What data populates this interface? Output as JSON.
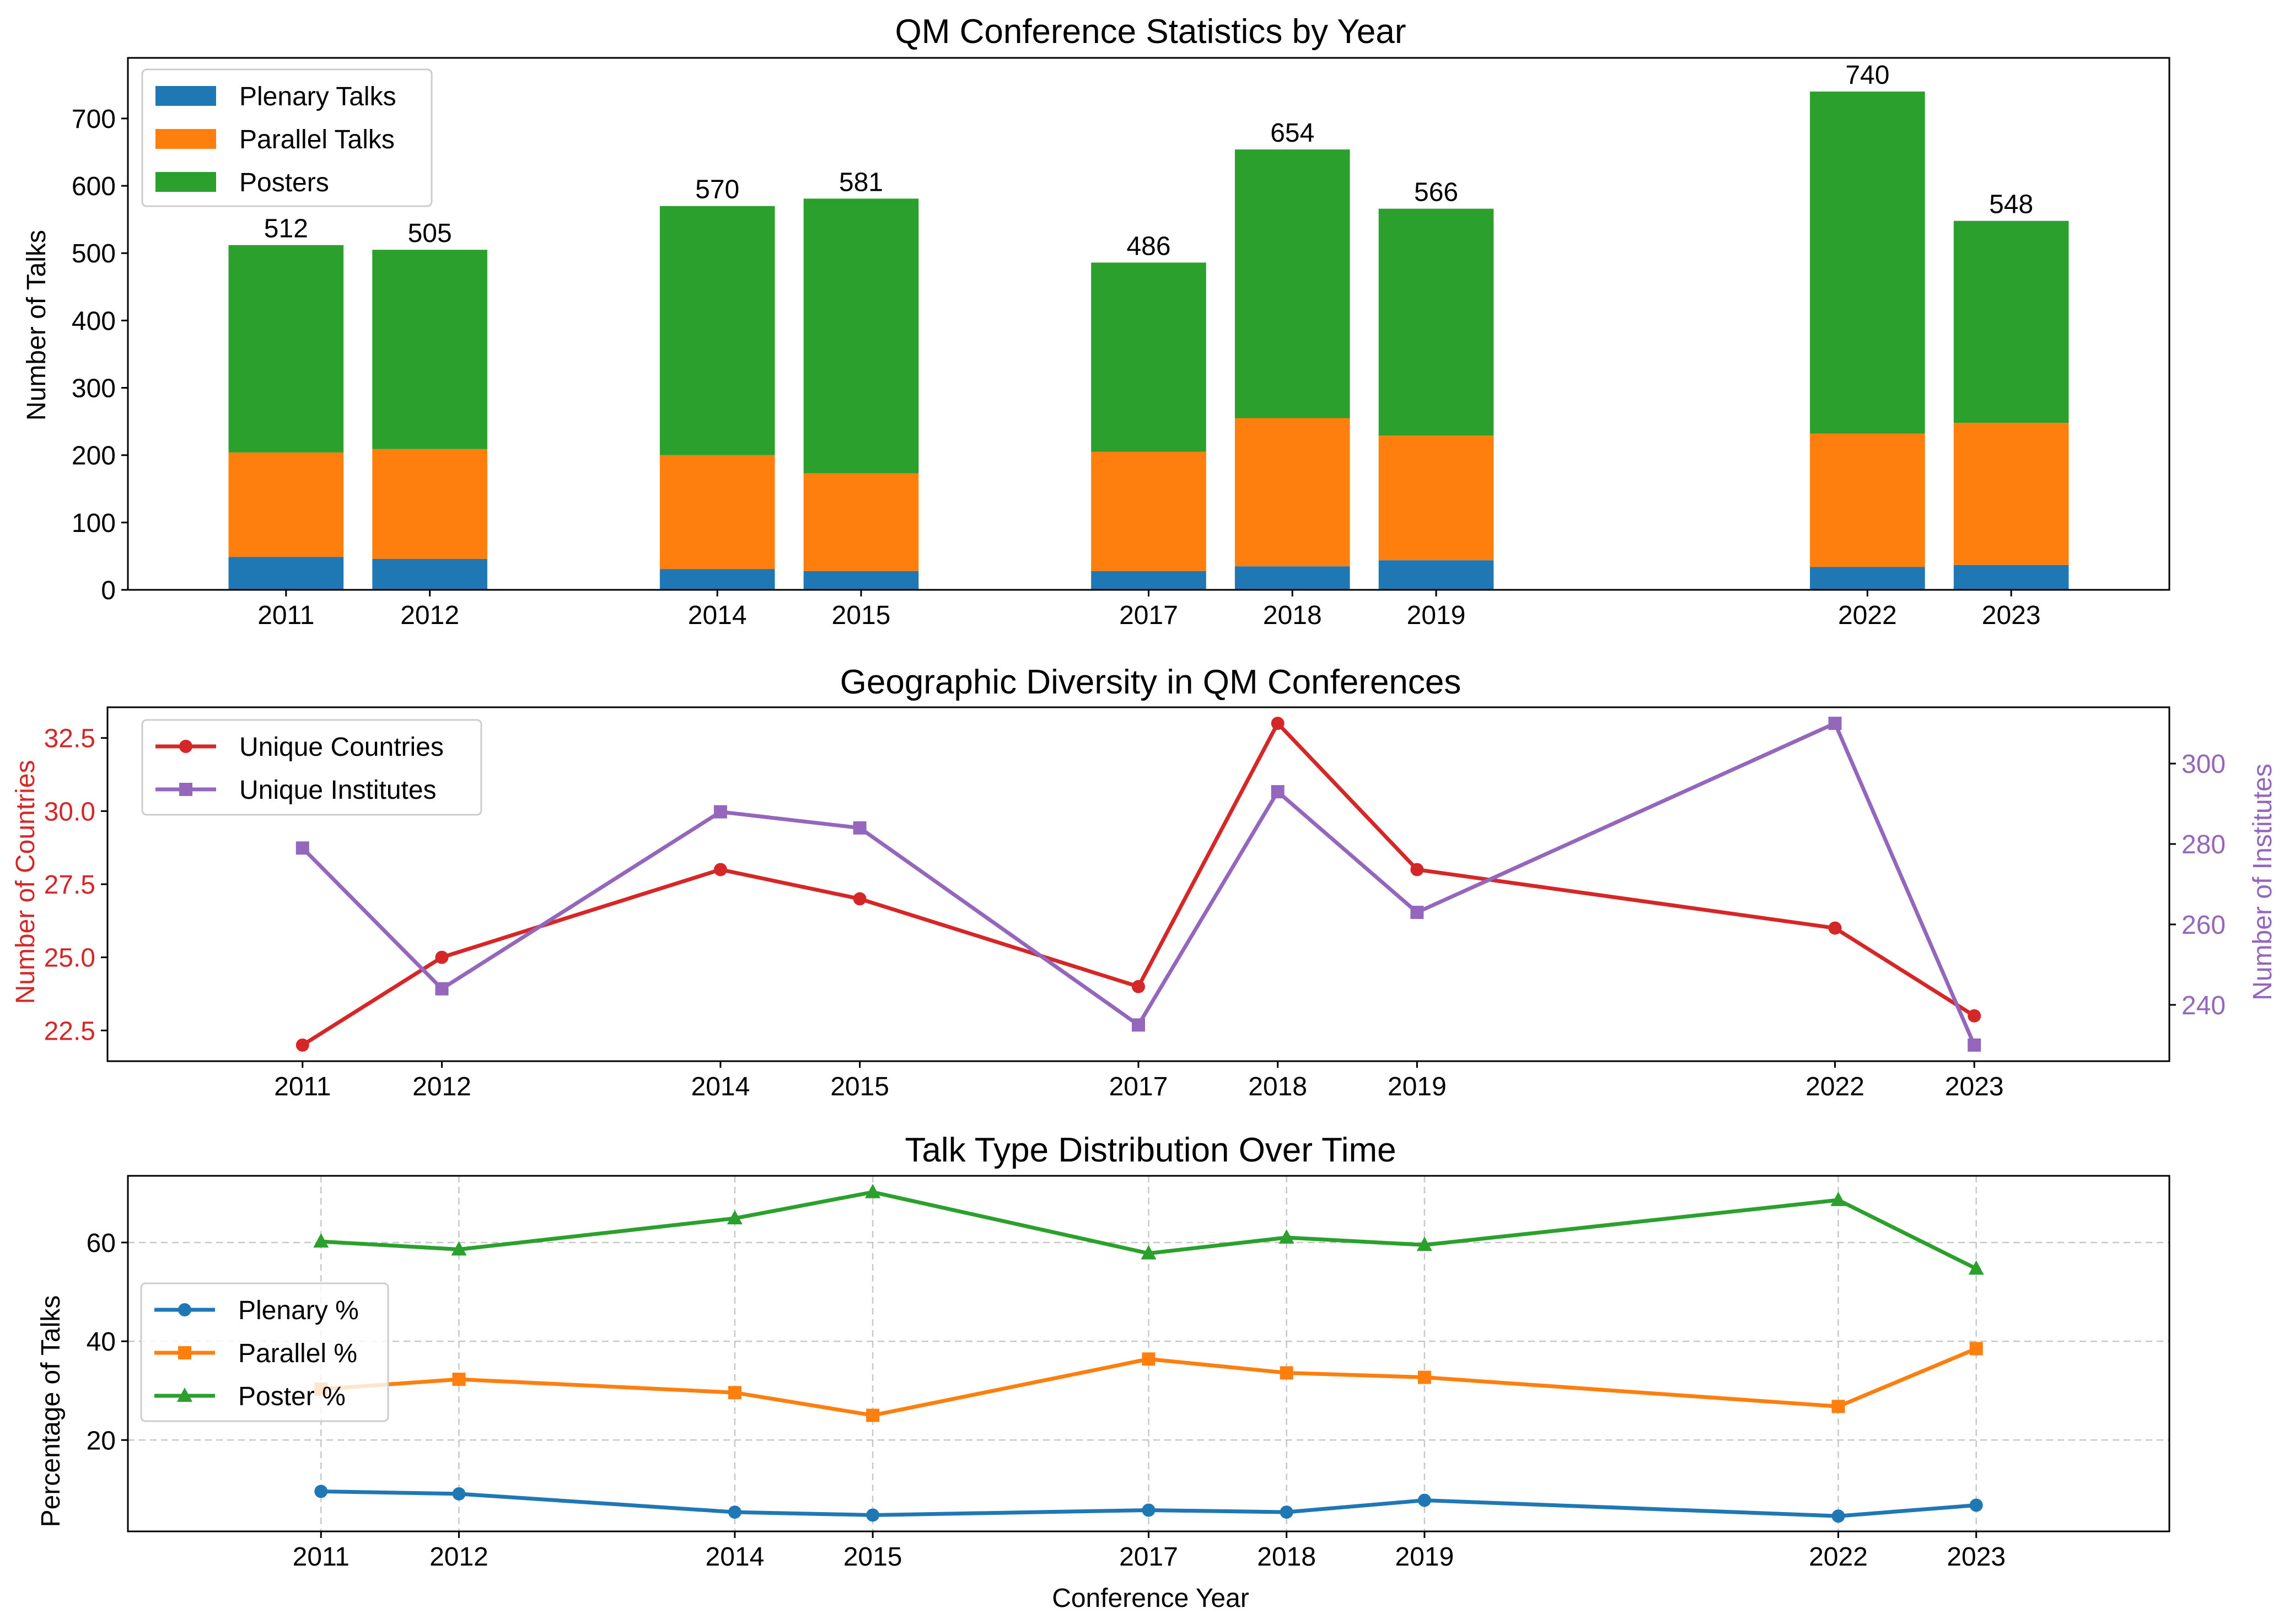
{
  "chart_data": [
    {
      "type": "bar",
      "stacked": true,
      "title": "QM Conference Statistics by Year",
      "xlabel": "",
      "ylabel": "Number of Talks",
      "categories": [
        "2011",
        "2012",
        "2014",
        "2015",
        "2017",
        "2018",
        "2019",
        "2022",
        "2023"
      ],
      "x": [
        2011,
        2012,
        2014,
        2015,
        2017,
        2018,
        2019,
        2022,
        2023
      ],
      "series": [
        {
          "name": "Plenary Talks",
          "color": "#1f77b4",
          "values": [
            49,
            46,
            31,
            28,
            28,
            35,
            44,
            34,
            37
          ]
        },
        {
          "name": "Parallel Talks",
          "color": "#ff7f0e",
          "values": [
            155,
            163,
            169,
            145,
            177,
            220,
            185,
            198,
            211
          ]
        },
        {
          "name": "Posters",
          "color": "#2ca02c",
          "values": [
            308,
            296,
            370,
            408,
            281,
            399,
            337,
            508,
            300
          ]
        }
      ],
      "totals": [
        512,
        505,
        570,
        581,
        486,
        654,
        566,
        740,
        548
      ],
      "ylim": [
        0,
        790
      ],
      "yticks": [
        0,
        100,
        200,
        300,
        400,
        500,
        600,
        700
      ],
      "grid": false,
      "legend": "top-left"
    },
    {
      "type": "line",
      "title": "Geographic Diversity in QM Conferences",
      "xlabel": "",
      "x": [
        2011,
        2012,
        2014,
        2015,
        2017,
        2018,
        2019,
        2022,
        2023
      ],
      "ylabel": "Number of Countries",
      "ylabel_right": "Number of Institutes",
      "series": [
        {
          "name": "Unique Countries",
          "axis": "left",
          "color": "#d62728",
          "marker": "circle",
          "values": [
            22,
            25,
            28,
            27,
            24,
            33,
            28,
            26,
            23
          ]
        },
        {
          "name": "Unique Institutes",
          "axis": "right",
          "color": "#9467bd",
          "marker": "square",
          "values": [
            279,
            244,
            288,
            284,
            235,
            293,
            263,
            310,
            230
          ]
        }
      ],
      "ylim": [
        21.45,
        33.55
      ],
      "yticks": [
        "22.5",
        "25.0",
        "27.5",
        "30.0",
        "32.5"
      ],
      "ylim_right": [
        226,
        314
      ],
      "yticks_right": [
        "240",
        "260",
        "280",
        "300"
      ],
      "grid": false,
      "legend": "top-left"
    },
    {
      "type": "line",
      "title": "Talk Type Distribution Over Time",
      "xlabel": "Conference Year",
      "ylabel": "Percentage of Talks",
      "x": [
        2011,
        2012,
        2014,
        2015,
        2017,
        2018,
        2019,
        2022,
        2023
      ],
      "series": [
        {
          "name": "Plenary %",
          "color": "#1f77b4",
          "marker": "circle",
          "values": [
            9.6,
            9.1,
            5.4,
            4.8,
            5.8,
            5.4,
            7.8,
            4.6,
            6.8
          ]
        },
        {
          "name": "Parallel %",
          "color": "#ff7f0e",
          "marker": "square",
          "values": [
            30.3,
            32.3,
            29.6,
            25.0,
            36.4,
            33.6,
            32.7,
            26.8,
            38.5
          ]
        },
        {
          "name": "Poster %",
          "color": "#2ca02c",
          "marker": "triangle",
          "values": [
            60.2,
            58.6,
            64.9,
            70.2,
            57.8,
            61.0,
            59.5,
            68.6,
            54.7
          ]
        }
      ],
      "ylim": [
        1.5,
        73.5
      ],
      "yticks": [
        "20",
        "40",
        "60"
      ],
      "grid": true,
      "legend": "center-left"
    }
  ]
}
